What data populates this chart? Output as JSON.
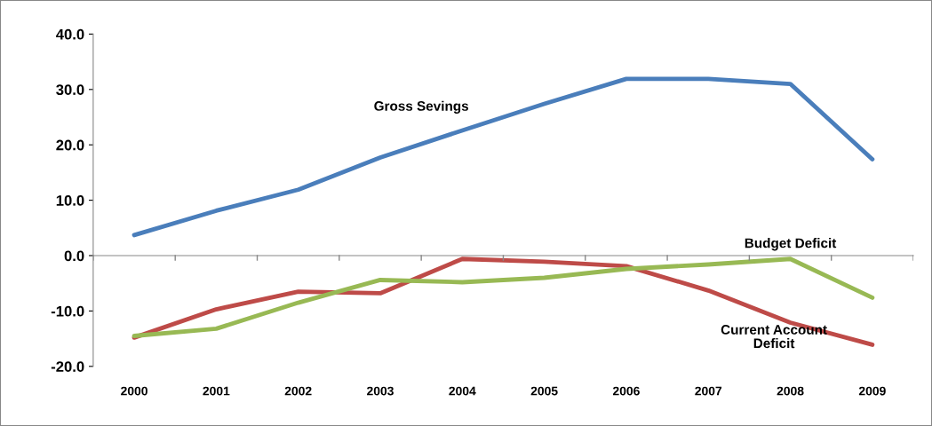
{
  "chart_data": {
    "type": "line",
    "categories": [
      "2000",
      "2001",
      "2002",
      "2003",
      "2004",
      "2005",
      "2006",
      "2007",
      "2008",
      "2009"
    ],
    "series": [
      {
        "name": "Gross Sevings",
        "color": "#4a7ebb",
        "values": [
          3.7,
          8.1,
          11.9,
          17.7,
          22.6,
          27.4,
          31.9,
          31.9,
          31.0,
          17.4
        ]
      },
      {
        "name": "Current Account Deficit",
        "color": "#be4b48",
        "values": [
          -14.8,
          -9.7,
          -6.5,
          -6.8,
          -0.6,
          -1.1,
          -1.9,
          -6.3,
          -12.1,
          -16.1
        ]
      },
      {
        "name": "Budget Deficit",
        "color": "#98b954",
        "values": [
          -14.5,
          -13.2,
          -8.5,
          -4.4,
          -4.8,
          -4.0,
          -2.4,
          -1.6,
          -0.6,
          -7.6
        ]
      }
    ],
    "ylim": [
      -20,
      40
    ],
    "yticks": [
      {
        "value": -20,
        "label": "-20.0"
      },
      {
        "value": -10,
        "label": "-10.0"
      },
      {
        "value": 0,
        "label": "0.0"
      },
      {
        "value": 10,
        "label": "10.0"
      },
      {
        "value": 20,
        "label": "20.0"
      },
      {
        "value": 30,
        "label": "30.0"
      },
      {
        "value": 40,
        "label": "40.0"
      }
    ],
    "legend": false,
    "marker": "none",
    "line_style": "solid"
  }
}
